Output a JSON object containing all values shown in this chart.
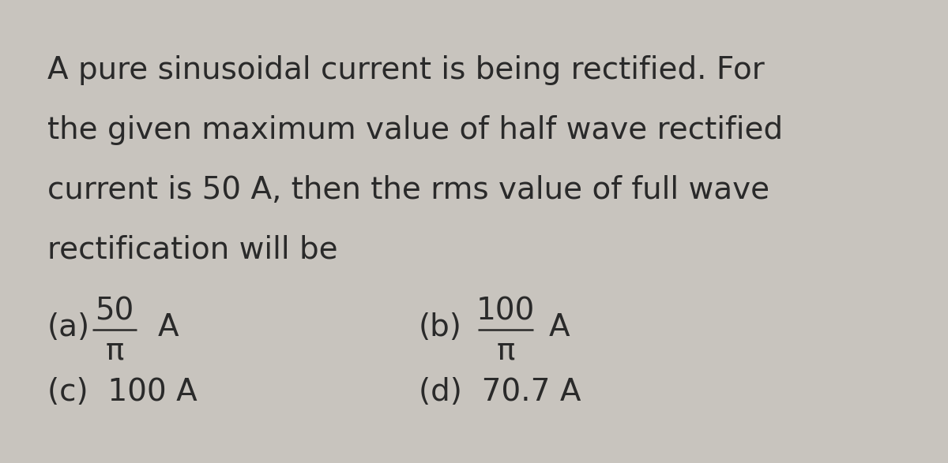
{
  "background_color": "#c8c4be",
  "question_text_lines": [
    "A pure sinusoidal current is being rectified. For",
    "the given maximum value of half wave rectified",
    "current is 50 A, then the rms value of full wave",
    "rectification will be"
  ],
  "question_color": "#2a2a2a",
  "question_fontsize": 28,
  "option_a_label": "(a)",
  "option_a_numerator": "50",
  "option_a_denominator": "π",
  "option_a_unit": "A",
  "option_b_label": "(b)",
  "option_b_numerator": "100",
  "option_b_denominator": "π",
  "option_b_unit": "A",
  "option_c_label": "(c)",
  "option_c_text": "100 A",
  "option_d_label": "(d)",
  "option_d_text": "70.7 A",
  "options_fontsize": 28,
  "options_color": "#2a2a2a",
  "fraction_line_color": "#2a2a2a"
}
